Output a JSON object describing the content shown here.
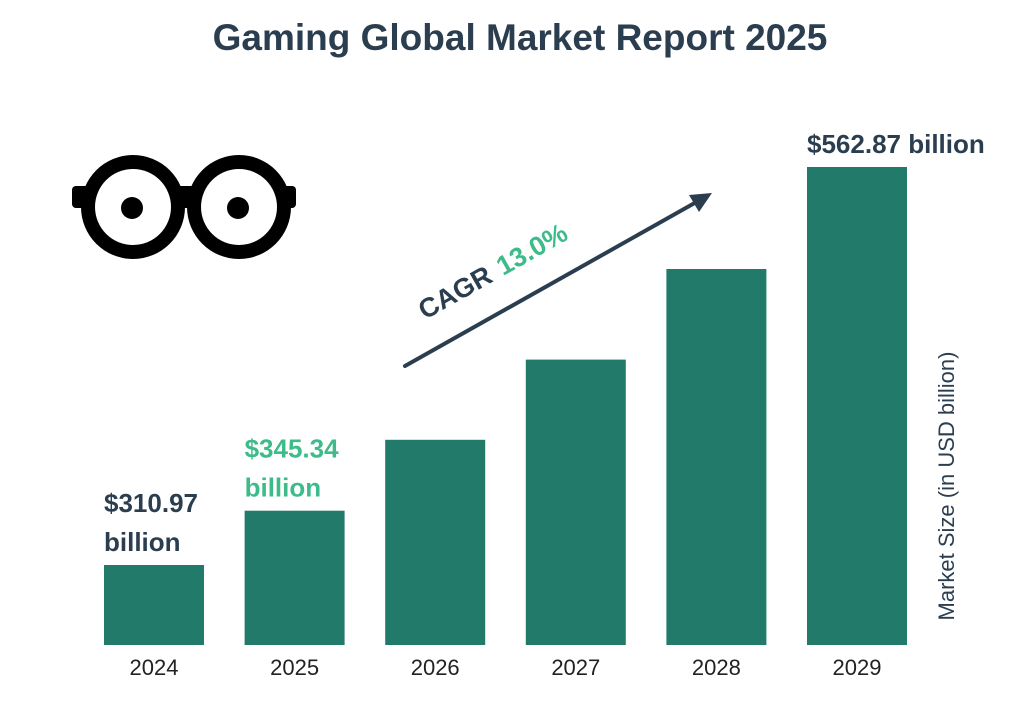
{
  "chart_data": {
    "type": "bar",
    "title": "Gaming Global Market Report 2025",
    "categories": [
      "2024",
      "2025",
      "2026",
      "2027",
      "2028",
      "2029"
    ],
    "values": [
      310.97,
      345.34,
      390.2,
      441.0,
      498.3,
      562.87
    ],
    "ylabel": "Market Size (in USD billion)",
    "bar_color": "#227a6b",
    "data_labels": [
      {
        "index": 0,
        "lines": [
          "$310.97",
          "billion"
        ],
        "color": "#2b3e50"
      },
      {
        "index": 1,
        "lines": [
          "$345.34",
          "billion"
        ],
        "color": "#3dbb8a"
      },
      {
        "index": 5,
        "lines": [
          "$562.87 billion"
        ],
        "color": "#2b3e50"
      }
    ],
    "annotation": {
      "label": "CAGR",
      "value": "13.0%",
      "label_color": "#2b3e50",
      "value_color": "#3dbb8a"
    }
  },
  "logo": {
    "name": "glasses-icon"
  }
}
